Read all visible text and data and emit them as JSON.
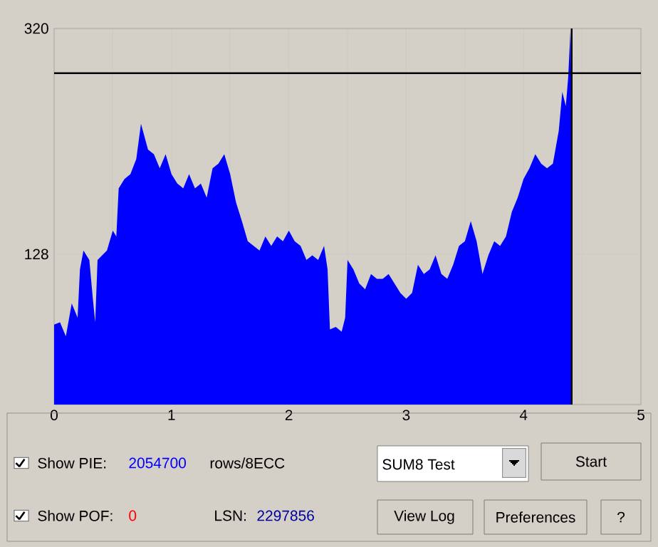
{
  "chart_data": {
    "type": "area",
    "x": [
      0,
      0.05,
      0.1,
      0.15,
      0.2,
      0.22,
      0.25,
      0.3,
      0.33,
      0.35,
      0.37,
      0.45,
      0.5,
      0.53,
      0.55,
      0.6,
      0.65,
      0.7,
      0.74,
      0.8,
      0.85,
      0.9,
      0.95,
      1.0,
      1.05,
      1.1,
      1.15,
      1.2,
      1.25,
      1.3,
      1.35,
      1.4,
      1.45,
      1.5,
      1.55,
      1.6,
      1.65,
      1.7,
      1.75,
      1.8,
      1.85,
      1.9,
      1.95,
      2.0,
      2.05,
      2.1,
      2.15,
      2.2,
      2.25,
      2.3,
      2.33,
      2.35,
      2.4,
      2.45,
      2.48,
      2.5,
      2.55,
      2.6,
      2.65,
      2.7,
      2.75,
      2.8,
      2.85,
      2.9,
      2.95,
      3.0,
      3.05,
      3.1,
      3.15,
      3.2,
      3.25,
      3.3,
      3.35,
      3.4,
      3.45,
      3.5,
      3.55,
      3.6,
      3.65,
      3.7,
      3.75,
      3.8,
      3.85,
      3.9,
      3.95,
      4.0,
      4.05,
      4.1,
      4.15,
      4.2,
      4.25,
      4.3,
      4.33,
      4.36,
      4.38,
      4.4,
      4.41
    ],
    "series": [
      {
        "color": "#0000ff",
        "values": [
          68,
          70,
          58,
          86,
          74,
          115,
          131,
          123,
          90,
          70,
          123,
          131,
          148,
          143,
          184,
          192,
          196,
          209,
          239,
          217,
          213,
          201,
          213,
          196,
          188,
          184,
          196,
          184,
          188,
          176,
          201,
          205,
          213,
          196,
          172,
          156,
          139,
          135,
          131,
          143,
          135,
          143,
          139,
          148,
          139,
          135,
          123,
          127,
          123,
          135,
          115,
          64,
          66,
          62,
          74,
          123,
          115,
          103,
          98,
          111,
          107,
          107,
          111,
          103,
          95,
          90,
          95,
          119,
          111,
          115,
          127,
          111,
          107,
          119,
          135,
          139,
          156,
          139,
          111,
          127,
          139,
          135,
          143,
          164,
          176,
          192,
          201,
          213,
          205,
          201,
          205,
          233,
          266,
          254,
          278,
          319,
          249
        ]
      }
    ],
    "xlim": [
      0,
      5
    ],
    "ylim": [
      0,
      320
    ],
    "xticks": [
      0,
      {
        "value": 0.5,
        "label": null
      },
      1,
      {
        "value": 1.5,
        "label": null
      },
      2,
      {
        "value": 2.5,
        "label": null
      },
      3,
      {
        "value": 3.5,
        "label": null
      },
      4,
      {
        "value": 4.5,
        "label": null
      },
      5
    ],
    "yticks": [
      {
        "value": 0,
        "label": null
      },
      128,
      320
    ],
    "grid": true,
    "ref_lines": [
      {
        "axis": "y",
        "value": 282,
        "color": "#000000"
      },
      {
        "axis": "x",
        "value": 4.41,
        "color": "#000000"
      }
    ],
    "annotations": [
      "Show PIE:",
      "2054700",
      "rows/8ECC",
      "SUM8 Test",
      "Start",
      "Show POF:",
      "0",
      "LSN:",
      "2297856",
      "View Log",
      "Preferences",
      "?"
    ]
  }
}
